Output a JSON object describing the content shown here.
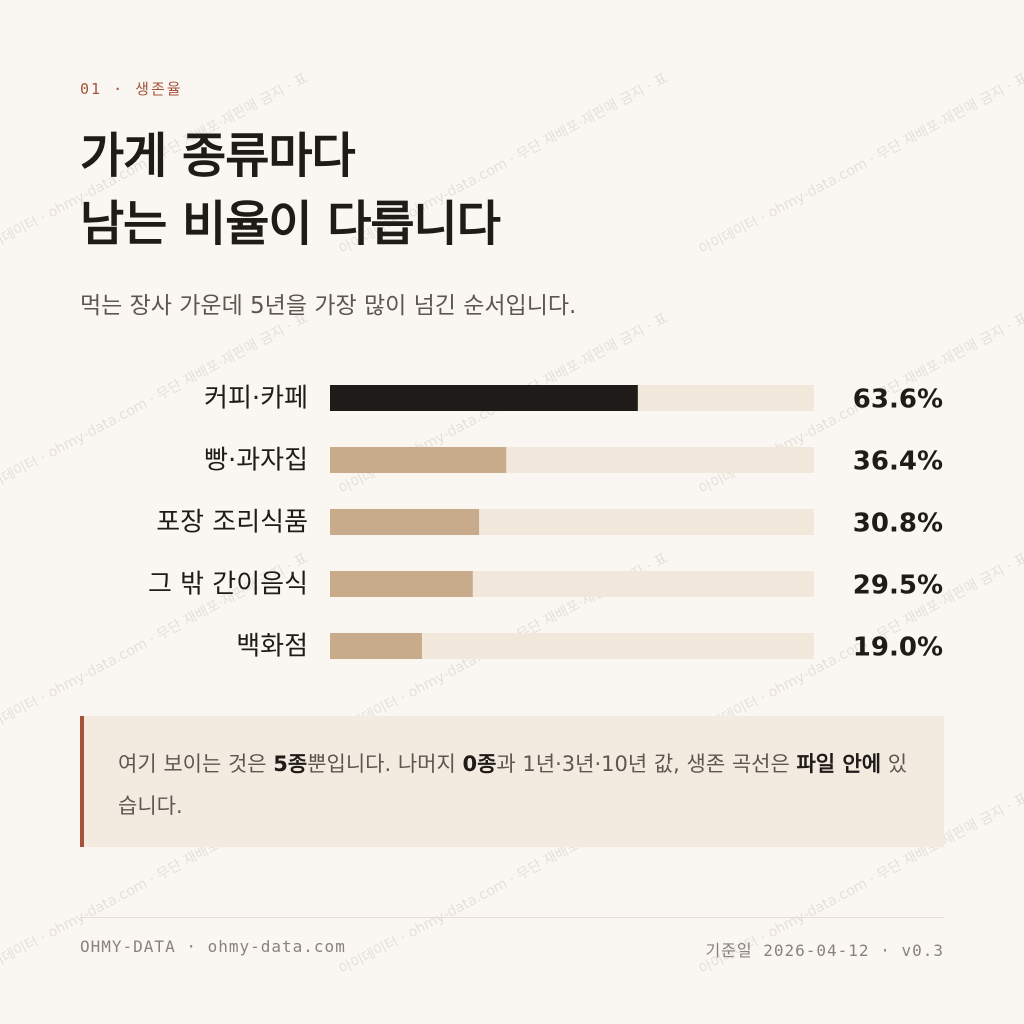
{
  "eyebrow": "01 · 생존율",
  "title": [
    "가게 종류마다",
    "남는 비율이 다릅니다"
  ],
  "subtitle": "먹는 장사 가운데 5년을 가장 많이 넘긴 순서입니다.",
  "watermark": "아이데이터 · ohmy-data.com · 무단 재배포·재판매 금지 · 표",
  "chart_data": {
    "type": "bar",
    "orientation": "horizontal",
    "categories": [
      "커피·카페",
      "빵·과자집",
      "포장 조리식품",
      "그 밖 간이음식",
      "백화점"
    ],
    "values": [
      63.6,
      36.4,
      30.8,
      29.5,
      19.0
    ],
    "value_labels": [
      "63.6%",
      "36.4%",
      "30.8%",
      "29.5%",
      "19.0%"
    ],
    "xlim": [
      0,
      100
    ],
    "grid": false,
    "highlight_index": 0,
    "colors": {
      "highlight": "#1f1b18",
      "bar": "#c8ab8a",
      "track": "#f1e7db"
    }
  },
  "callout": {
    "t1": "여기 보이는 것은 ",
    "b1": "5종",
    "t2": "뿐입니다. 나머지 ",
    "b2": "0종",
    "t3": "과 1년·3년·10년 값, 생존 곡선은 ",
    "b3": "파일 안에",
    "t4": " 있습니다."
  },
  "footer": {
    "left": "OHMY-DATA · ohmy-data.com",
    "right": "기준일 2026-04-12 · v0.3"
  },
  "colors": {
    "accent": "#a4523c",
    "background": "#faf7f2",
    "callout_bg": "#f4ebe0"
  }
}
